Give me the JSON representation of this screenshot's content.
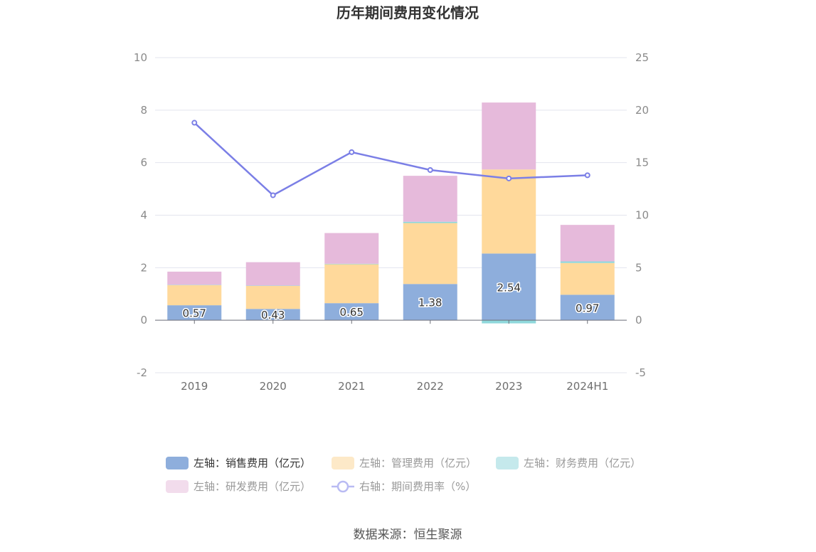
{
  "chart_data": {
    "type": "bar",
    "stacked": true,
    "title": "历年期间费用变化情况",
    "categories": [
      "2019",
      "2020",
      "2021",
      "2022",
      "2023",
      "2024H1"
    ],
    "y_left": {
      "ylim": [
        -2,
        10
      ],
      "ticks": [
        "-2",
        "0",
        "2",
        "4",
        "6",
        "8",
        "10"
      ]
    },
    "y_right": {
      "ylim": [
        -5,
        25
      ],
      "ticks": [
        "-5",
        "0",
        "5",
        "10",
        "15",
        "20",
        "25"
      ]
    },
    "series": [
      {
        "name": "左轴：销售费用（亿元）",
        "type": "bar",
        "axis": "left",
        "color": "#8eaedc",
        "values": [
          0.57,
          0.43,
          0.65,
          1.38,
          2.54,
          0.97
        ],
        "labels": [
          "0.57",
          "0.43",
          "0.65",
          "1.38",
          "2.54",
          "0.97"
        ]
      },
      {
        "name": "左轴：管理费用（亿元）",
        "type": "bar",
        "axis": "left",
        "color": "#ffd99b",
        "values": [
          0.77,
          0.88,
          1.48,
          2.32,
          3.2,
          1.21
        ]
      },
      {
        "name": "左轴：财务费用（亿元）",
        "type": "bar",
        "axis": "left",
        "color": "#8fd8dc",
        "values": [
          0.01,
          0.01,
          0.02,
          0.05,
          -0.12,
          0.06
        ]
      },
      {
        "name": "左轴：研发费用（亿元）",
        "type": "bar",
        "axis": "left",
        "color": "#e6badb",
        "values": [
          0.5,
          0.89,
          1.17,
          1.75,
          2.55,
          1.39
        ]
      },
      {
        "name": "右轴：期间费用率（%）",
        "type": "line",
        "axis": "right",
        "color": "#7b7fe6",
        "values": [
          18.8,
          11.9,
          16.0,
          14.3,
          13.5,
          13.8
        ]
      }
    ],
    "legend_position": "bottom",
    "source": "数据来源：恒生聚源"
  },
  "legend_colors": {
    "text_active": "#333333",
    "text_muted": "#999999",
    "swatches": [
      "#8eaedc",
      "#fde9c8",
      "#c5e9ec",
      "#f2dcec",
      "#b9bbf3"
    ]
  }
}
